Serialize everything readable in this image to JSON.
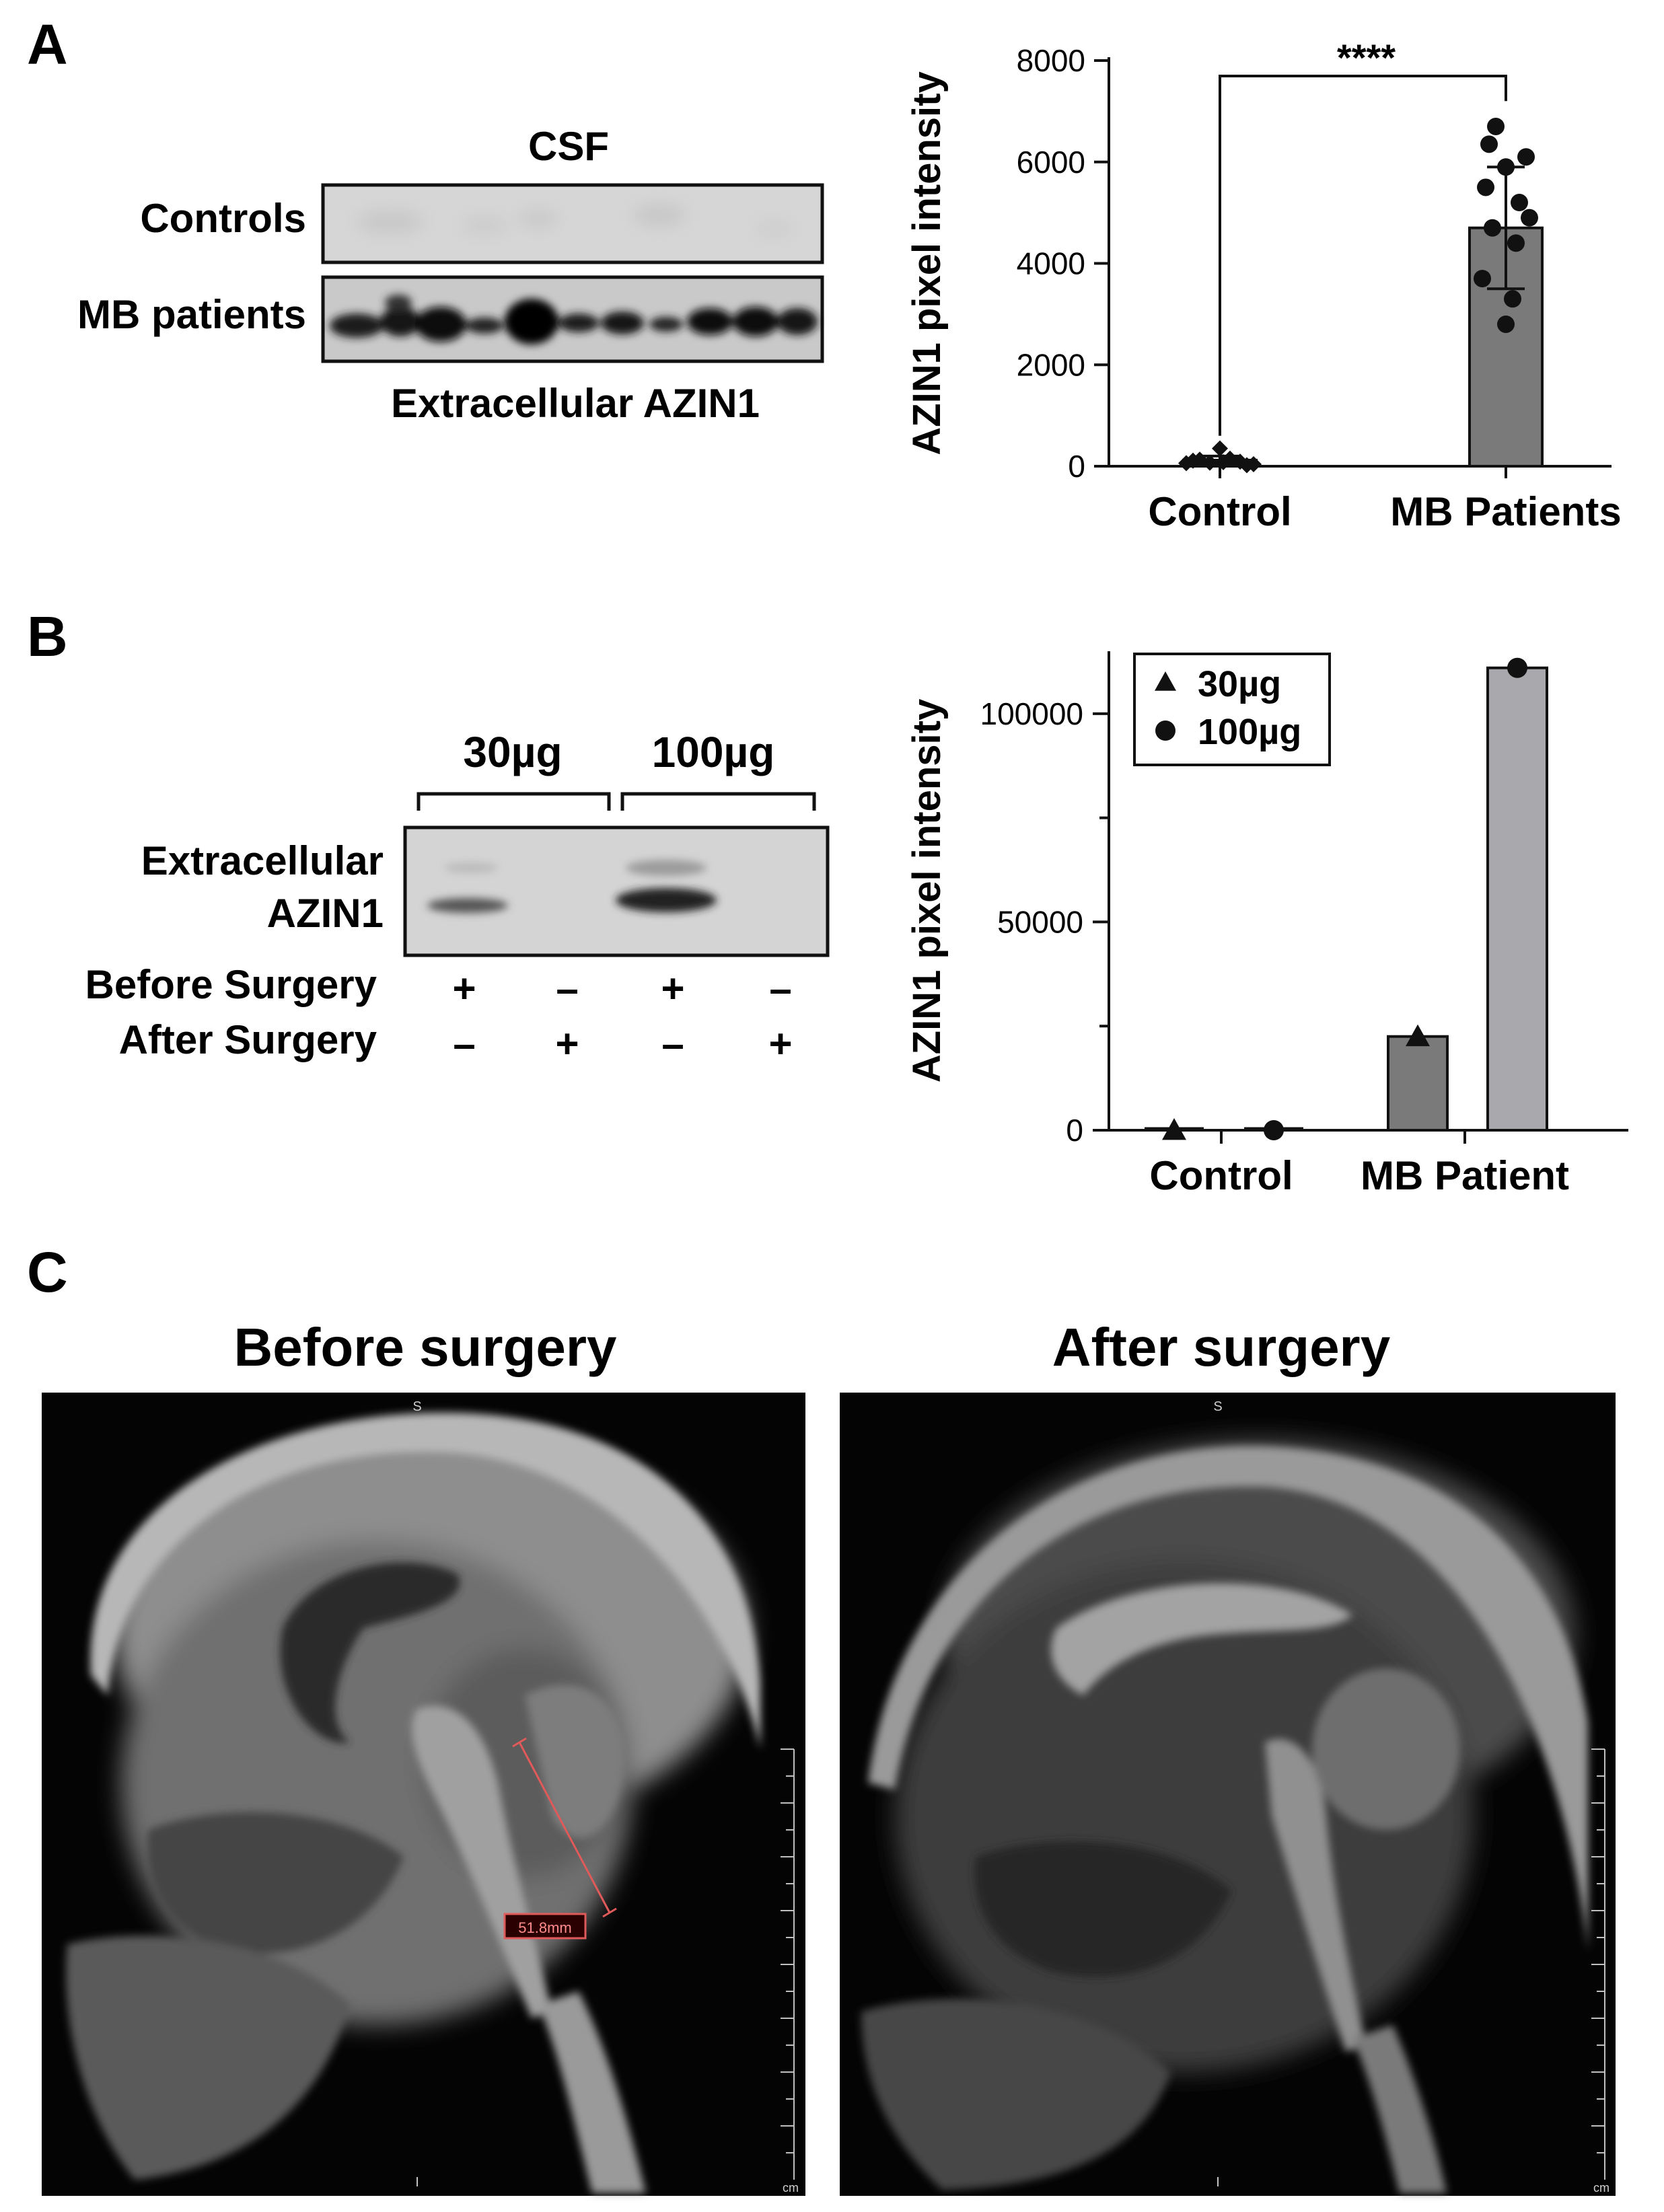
{
  "panels": {
    "A": {
      "label": "A",
      "blot": {
        "title": "CSF",
        "row_labels": [
          "Controls",
          "MB patients"
        ],
        "caption": "Extracellular AZIN1"
      }
    },
    "B": {
      "label": "B",
      "blot": {
        "group_labels": [
          "30µg",
          "100µg"
        ],
        "protein_label_line1": "Extracellular",
        "protein_label_line2": "AZIN1",
        "condition_rows": [
          {
            "label": "Before Surgery",
            "marks": [
              "+",
              "–",
              "+",
              "–"
            ]
          },
          {
            "label": "After Surgery",
            "marks": [
              "–",
              "+",
              "–",
              "+"
            ]
          }
        ]
      }
    },
    "C": {
      "label": "C",
      "mri": [
        {
          "title": "Before surgery",
          "orientation_top": "S",
          "orientation_bottom": "I",
          "scale_unit": "cm",
          "measurement": "51.8mm"
        },
        {
          "title": "After surgery",
          "orientation_top": "S",
          "orientation_bottom": "I",
          "scale_unit": "cm"
        }
      ]
    }
  },
  "chart_data": [
    {
      "type": "bar",
      "panel": "A",
      "categories": [
        "Control",
        "MB Patients"
      ],
      "ylabel": "AZIN1 pixel intensity",
      "xlabel": "",
      "ylim": [
        0,
        8000
      ],
      "yticks": [
        0,
        2000,
        4000,
        6000,
        8000
      ],
      "bars": [
        {
          "category": "Control",
          "mean": 120,
          "sd": 80,
          "color": "#7a7a7a"
        },
        {
          "category": "MB Patients",
          "mean": 4700,
          "sd": 1200,
          "color": "#7a7a7a"
        }
      ],
      "points": {
        "Control": [
          350,
          130,
          90,
          60,
          40,
          150,
          70,
          20,
          110,
          80
        ],
        "MB Patients": [
          6700,
          6350,
          6100,
          5900,
          5500,
          5200,
          4900,
          4700,
          4400,
          3700,
          3300,
          2800
        ]
      },
      "point_markers": {
        "Control": "diamond",
        "MB Patients": "circle"
      },
      "significance": "****",
      "grid": false
    },
    {
      "type": "bar",
      "panel": "B",
      "categories": [
        "Control",
        "MB Patient"
      ],
      "ylabel": "AZIN1 pixel intensity",
      "xlabel": "",
      "ylim": [
        0,
        115000
      ],
      "yticks": [
        0,
        50000,
        100000
      ],
      "series": [
        {
          "name": "30µg",
          "marker": "triangle",
          "values": [
            0,
            22500
          ],
          "color": "#7a7a7a"
        },
        {
          "name": "100µg",
          "marker": "circle",
          "values": [
            0,
            111000
          ],
          "color": "#a9a9ad"
        }
      ],
      "legend": {
        "placement": "top-left",
        "entries": [
          "30µg",
          "100µg"
        ]
      },
      "grid": false
    }
  ]
}
